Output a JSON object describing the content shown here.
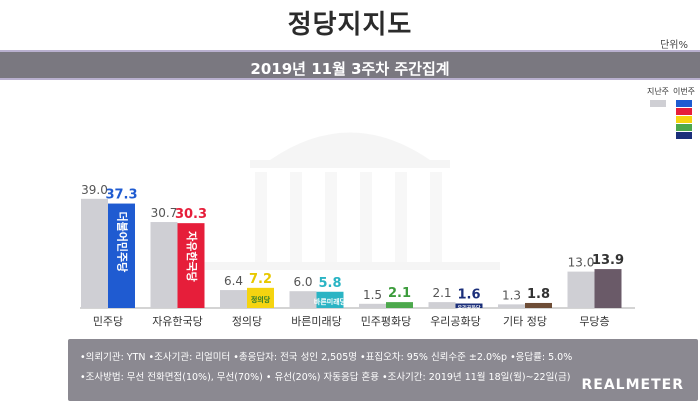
{
  "header": {
    "title": "정당지지도",
    "unit": "단위%",
    "subtitle": "2019년 11월 3주차 주간집계"
  },
  "legend": {
    "prev": "지난주",
    "curr": "이번주"
  },
  "chart_data": {
    "type": "bar",
    "categories": [
      "민주당",
      "자유한국당",
      "정의당",
      "바른미래당",
      "민주평화당",
      "우리공화당",
      "기타 정당",
      "무당층"
    ],
    "series": [
      {
        "name": "지난주",
        "values": [
          39.0,
          30.7,
          6.4,
          6.0,
          1.5,
          2.1,
          1.3,
          13.0
        ]
      },
      {
        "name": "이번주",
        "values": [
          37.3,
          30.3,
          7.2,
          5.8,
          2.1,
          1.6,
          1.8,
          13.9
        ]
      }
    ],
    "value_labels": {
      "prev": [
        "39.0",
        "30.7",
        "6.4",
        "6.0",
        "1.5",
        "2.1",
        "1.3",
        "13.0"
      ],
      "curr": [
        "37.3",
        "30.3",
        "7.2",
        "5.8",
        "2.1",
        "1.6",
        "1.8",
        "13.9"
      ]
    },
    "bar_texts": [
      "더불어민주당",
      "자유한국당",
      "정의당",
      "바른미래당",
      "",
      "우리공화당",
      "",
      ""
    ],
    "prev_color": "#cfcfd4",
    "curr_colors": [
      "#1f5bd1",
      "#e61e3a",
      "#f5d410",
      "#2ab4c4",
      "#4ca84c",
      "#1b2f7a",
      "#6e4d36",
      "#6a5a68"
    ],
    "curr_label_colors": [
      "#1f5bd1",
      "#e61e3a",
      "#e8c800",
      "#2ab4c4",
      "#3c9c3c",
      "#1b2f7a",
      "#333333",
      "#333333"
    ],
    "legend_swatches": [
      "#1f5bd1",
      "#e61e3a",
      "#f5d410",
      "#4ca84c",
      "#1b2f7a"
    ],
    "legend_position": "top-right"
  },
  "footer": {
    "line1": "•의뢰기관: YTN •조사기관: 리얼미터 •총응답자: 전국 성인 2,505명 •표집오차: 95% 신뢰수준 ±2.0%p •응답률: 5.0%",
    "line2": "•조사방법: 무선 전화면접(10%), 무선(70%) • 유선(20%) 자동응답 혼용 •조사기간: 2019년 11월 18일(월)~22일(금)",
    "brand": "REALMETER"
  }
}
